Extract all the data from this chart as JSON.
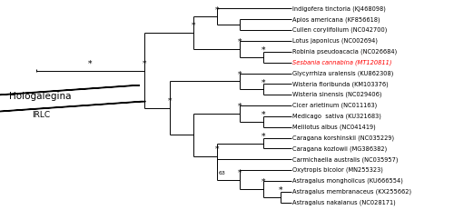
{
  "taxa": [
    {
      "name": "Indigofera tinctoria (KJ468098)",
      "color": "black",
      "y": 19
    },
    {
      "name": "Apios americana (KF856618)",
      "color": "black",
      "y": 18
    },
    {
      "name": "Cullen corylifolium (NC042700)",
      "color": "black",
      "y": 17
    },
    {
      "name": "Lotus japonicus (NC002694)",
      "color": "black",
      "y": 16
    },
    {
      "name": "Robinia pseudoacacia (NC026684)",
      "color": "black",
      "y": 15
    },
    {
      "name": "Sesbania cannabina (MT120811)",
      "color": "red",
      "y": 14
    },
    {
      "name": "Glycyrrhiza uralensis (KU862308)",
      "color": "black",
      "y": 13
    },
    {
      "name": "Wisteria floribunda (KM103376)",
      "color": "black",
      "y": 12
    },
    {
      "name": "Wisteria sinensis (NC029406)",
      "color": "black",
      "y": 11
    },
    {
      "name": "Cicer arietinum (NC011163)",
      "color": "black",
      "y": 10
    },
    {
      "name": "Medicago  sativa (KU321683)",
      "color": "black",
      "y": 9
    },
    {
      "name": "Melilotus albus (NC041419)",
      "color": "black",
      "y": 8
    },
    {
      "name": "Caragana korshinskii (NC035229)",
      "color": "black",
      "y": 7
    },
    {
      "name": "Caragana kozlowii (MG386382)",
      "color": "black",
      "y": 6
    },
    {
      "name": "Carmichaelia australis (NC035957)",
      "color": "black",
      "y": 5
    },
    {
      "name": "Oxytropis bicolor (MN255323)",
      "color": "black",
      "y": 4
    },
    {
      "name": "Astragalus mongholicus (KU666554)",
      "color": "black",
      "y": 3
    },
    {
      "name": "Astragalus membranaceus (KX255662)",
      "color": "black",
      "y": 2
    },
    {
      "name": "Astragalus nakaianus (NC028171)",
      "color": "black",
      "y": 1
    }
  ],
  "figsize": [
    5.0,
    2.31
  ],
  "dpi": 100,
  "taxa_fontsize": 4.8,
  "star_fontsize": 6.5,
  "label_fontsize_holo": 7.5,
  "label_fontsize_irlc": 6.5
}
